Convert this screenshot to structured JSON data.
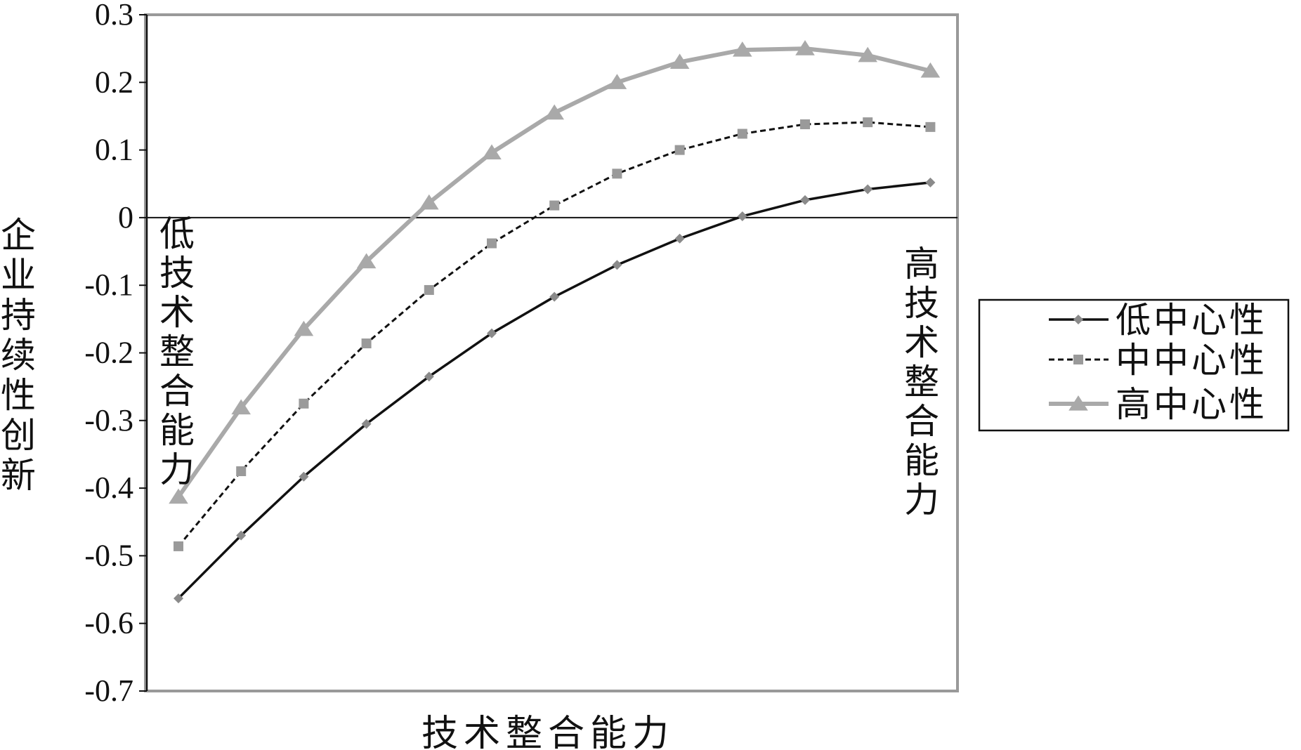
{
  "chart_data": {
    "type": "line",
    "xlabel": "技术整合能力",
    "ylabel": "企业持续性创新",
    "ylim": [
      -0.7,
      0.3
    ],
    "yticks": [
      0.3,
      0.2,
      0.1,
      0,
      -0.1,
      -0.2,
      -0.3,
      -0.4,
      -0.5,
      -0.6,
      -0.7
    ],
    "ytick_labels": [
      "0.3",
      "0.2",
      "0.1",
      "0",
      "-0.1",
      "-0.2",
      "-0.3",
      "-0.4",
      "-0.5",
      "-0.6",
      "-0.7"
    ],
    "x": [
      1,
      2,
      3,
      4,
      5,
      6,
      7,
      8,
      9,
      10,
      11,
      12,
      13
    ],
    "reference_line_y": 0,
    "annotations": {
      "low": "低技术整合能力",
      "high": "高技术整合能力"
    },
    "legend_position": "right",
    "series": [
      {
        "name": "低中心性",
        "marker": "diamond",
        "line": "solid",
        "color": "#111111",
        "values": [
          -0.563,
          -0.47,
          -0.383,
          -0.305,
          -0.235,
          -0.171,
          -0.117,
          -0.07,
          -0.031,
          0.002,
          0.026,
          0.042,
          0.052
        ]
      },
      {
        "name": "中中心性",
        "marker": "square",
        "line": "dashed",
        "color": "#111111",
        "marker_color": "#9a9a9a",
        "values": [
          -0.486,
          -0.375,
          -0.275,
          -0.186,
          -0.107,
          -0.038,
          0.018,
          0.065,
          0.1,
          0.124,
          0.138,
          0.141,
          0.134
        ]
      },
      {
        "name": "高中心性",
        "marker": "triangle",
        "line": "solid",
        "color": "#a9a9a9",
        "values": [
          -0.413,
          -0.281,
          -0.165,
          -0.065,
          0.022,
          0.096,
          0.155,
          0.2,
          0.23,
          0.248,
          0.25,
          0.24,
          0.217
        ]
      }
    ]
  }
}
